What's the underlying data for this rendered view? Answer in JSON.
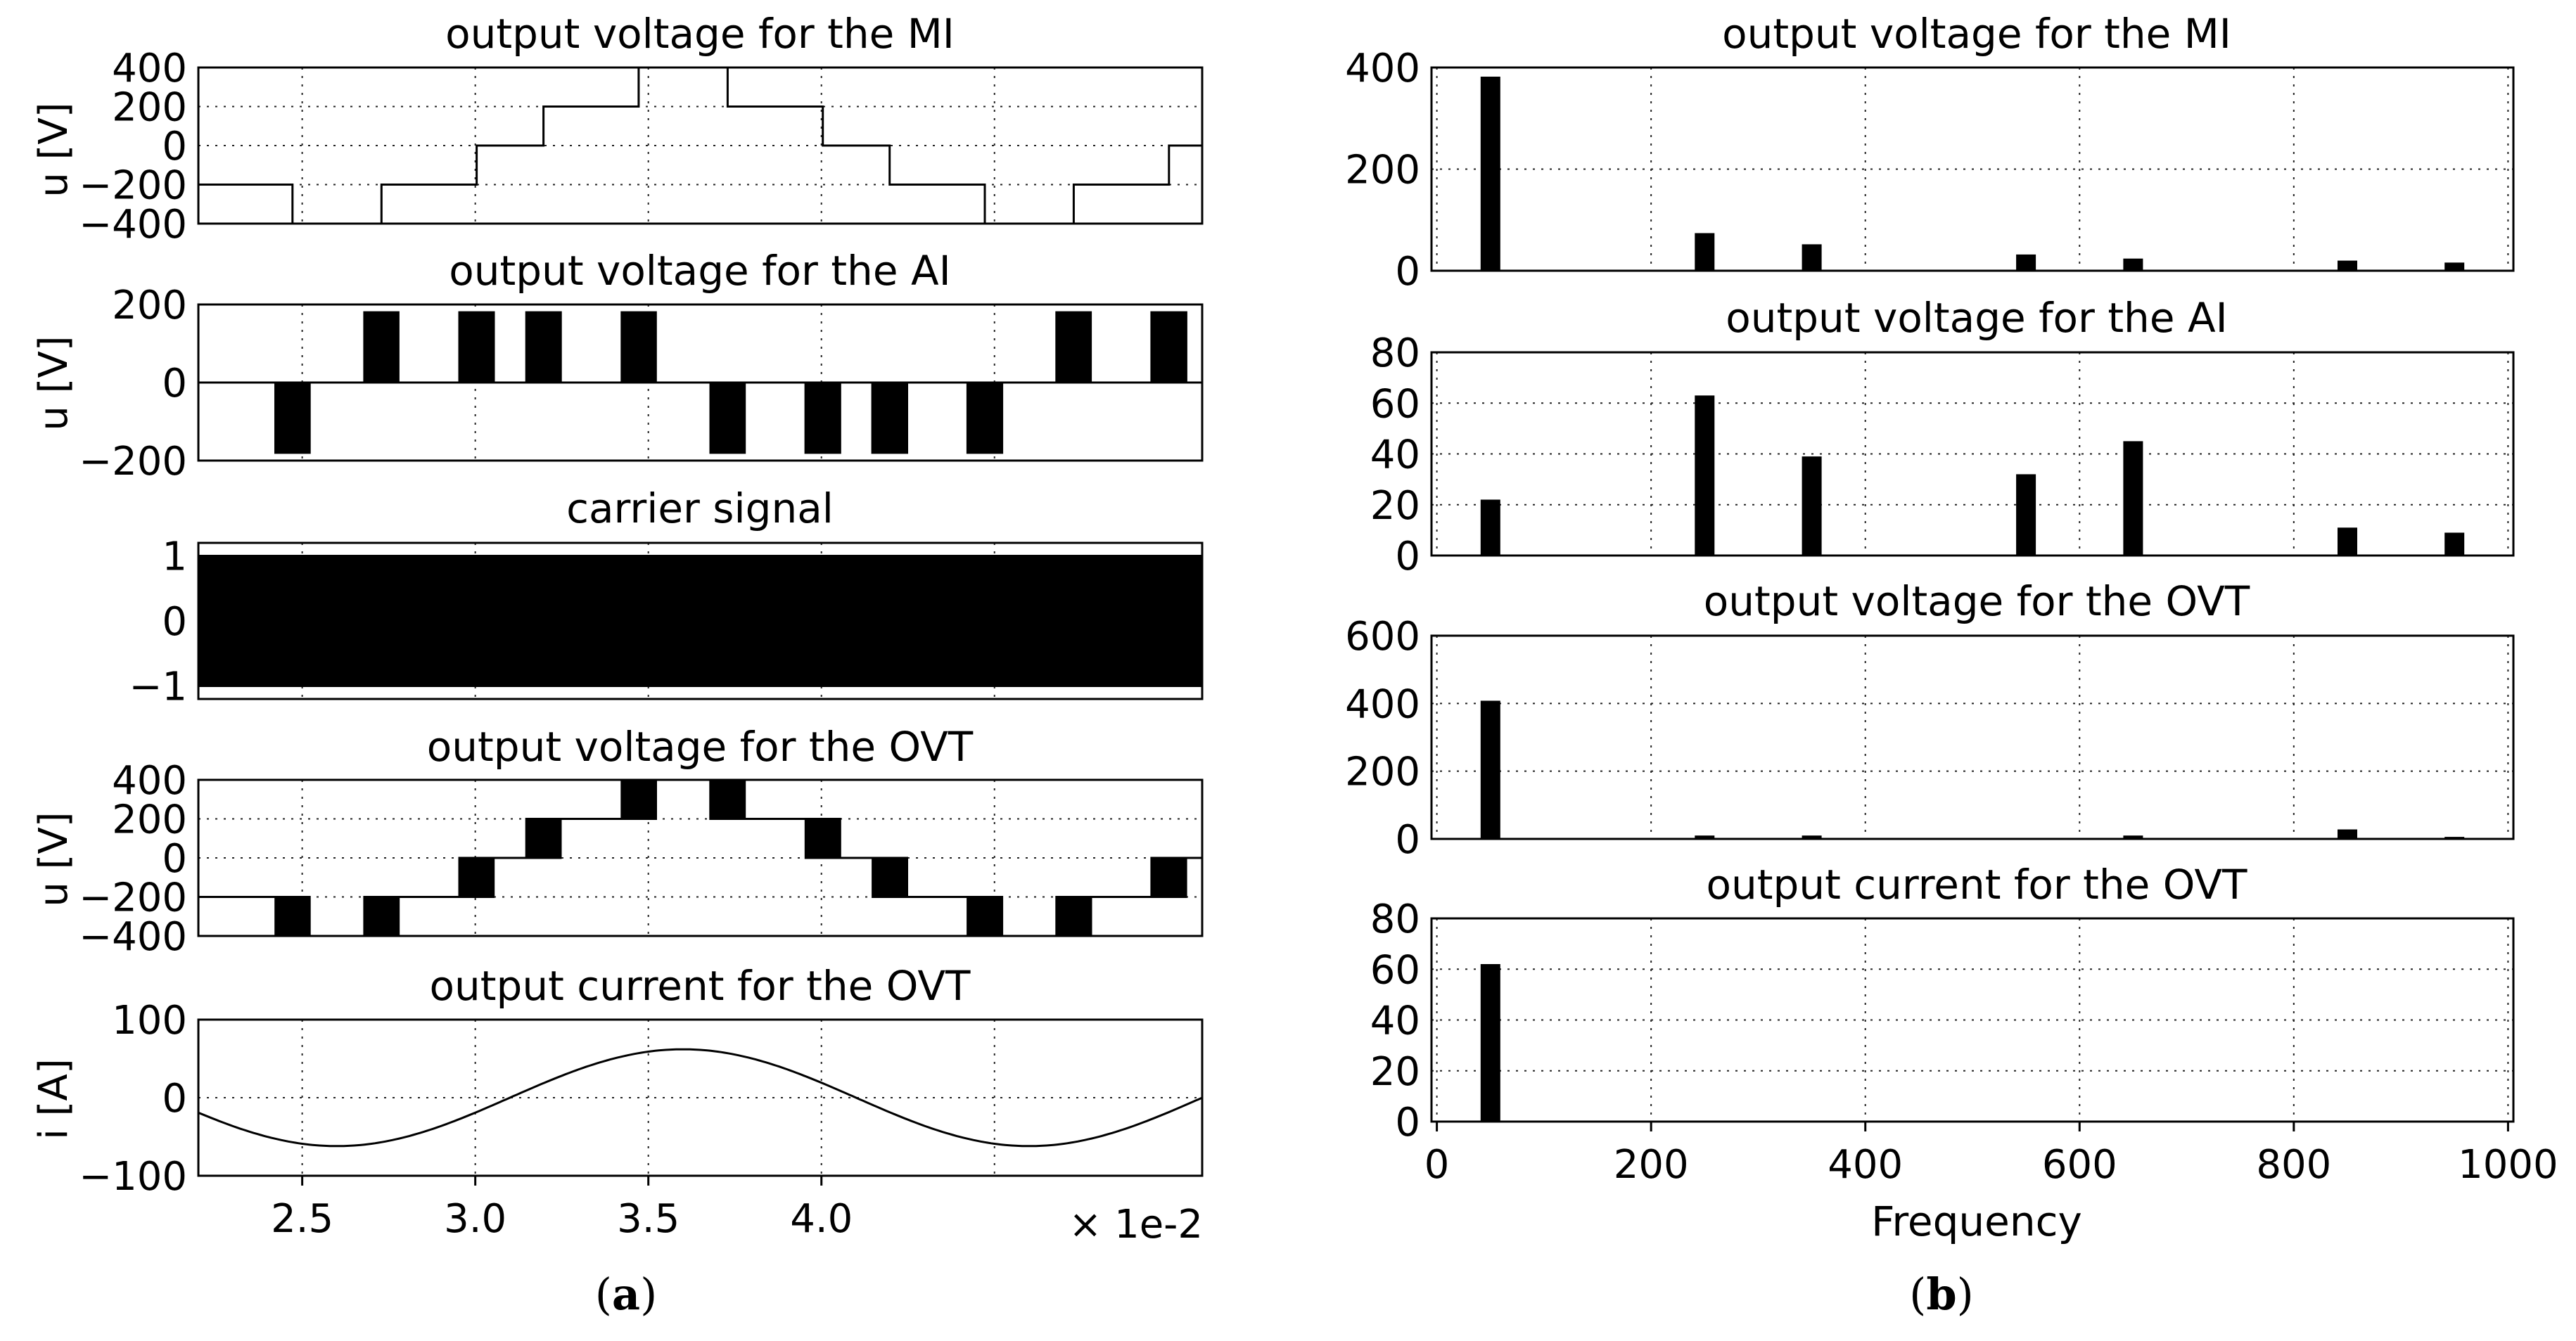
{
  "figure": {
    "left_caption": "(a)",
    "left_caption_letter": "a",
    "right_caption": "(b)",
    "right_caption_letter": "b"
  },
  "chart_data": [
    {
      "type": "line",
      "id": "a1",
      "title": "output voltage for the MI",
      "ylabel": "u [V]",
      "xlim": [
        2.2,
        5.1
      ],
      "ylim": [
        -400,
        400
      ],
      "yticks": [
        400,
        200,
        0,
        -200,
        -400
      ],
      "grid": true,
      "waveform": "mi_staircase",
      "levels": [
        -400,
        -200,
        0,
        200,
        400
      ]
    },
    {
      "type": "line",
      "id": "a2",
      "title": "output voltage for the AI",
      "ylabel": "u [V]",
      "xlim": [
        2.2,
        5.1
      ],
      "ylim": [
        -200,
        200
      ],
      "yticks": [
        200,
        0,
        -200
      ],
      "grid": true,
      "waveform": "ai_pwm",
      "levels": [
        -180,
        0,
        180
      ]
    },
    {
      "type": "line",
      "id": "a3",
      "title": "carrier signal",
      "ylabel": "",
      "xlim": [
        2.2,
        5.1
      ],
      "ylim": [
        -1.2,
        1.2
      ],
      "yticks": [
        1,
        0,
        -1
      ],
      "grid": true,
      "waveform": "carrier_square",
      "levels": [
        -1,
        1
      ]
    },
    {
      "type": "line",
      "id": "a4",
      "title": "output voltage for the OVT",
      "ylabel": "u [V]",
      "xlim": [
        2.2,
        5.1
      ],
      "ylim": [
        -400,
        400
      ],
      "yticks": [
        400,
        200,
        0,
        -200,
        -400
      ],
      "grid": true,
      "waveform": "ovt_staircase_pwm",
      "levels": [
        -400,
        -200,
        0,
        200,
        400
      ]
    },
    {
      "type": "line",
      "id": "a5",
      "title": "output current for the OVT",
      "ylabel": "i [A]",
      "xlim": [
        2.2,
        5.1
      ],
      "ylim": [
        -100,
        100
      ],
      "yticks": [
        100,
        0,
        -100
      ],
      "xticks": [
        2.5,
        3.0,
        3.5,
        4.0
      ],
      "xtick_labels": [
        "2.5",
        "3.0",
        "3.5",
        "4.0"
      ],
      "x_scale_label": "× 1e-2",
      "grid": true,
      "waveform": "sine",
      "amplitude": 62,
      "frequency_hz": 50,
      "peak_time": 3.6
    },
    {
      "type": "bar",
      "id": "b1",
      "title": "output voltage for the MI",
      "xlim": [
        -5,
        1005
      ],
      "ylim": [
        0,
        400
      ],
      "yticks": [
        400,
        200,
        0
      ],
      "grid": true,
      "x": [
        50,
        250,
        350,
        550,
        650,
        850,
        950
      ],
      "values": [
        382,
        74,
        52,
        32,
        24,
        20,
        16
      ]
    },
    {
      "type": "bar",
      "id": "b2",
      "title": "output voltage for the AI",
      "xlim": [
        -5,
        1005
      ],
      "ylim": [
        0,
        80
      ],
      "yticks": [
        80,
        60,
        40,
        20,
        0
      ],
      "grid": true,
      "x": [
        50,
        250,
        350,
        550,
        650,
        850,
        950
      ],
      "values": [
        22,
        63,
        39,
        32,
        45,
        11,
        9
      ]
    },
    {
      "type": "bar",
      "id": "b3",
      "title": "output voltage for the OVT",
      "xlim": [
        -5,
        1005
      ],
      "ylim": [
        0,
        600
      ],
      "yticks": [
        600,
        400,
        200,
        0
      ],
      "grid": true,
      "x": [
        50,
        250,
        350,
        650,
        850,
        950
      ],
      "values": [
        408,
        10,
        10,
        10,
        28,
        6
      ]
    },
    {
      "type": "bar",
      "id": "b4",
      "title": "output current for the OVT",
      "xlim": [
        -5,
        1005
      ],
      "ylim": [
        0,
        80
      ],
      "yticks": [
        80,
        60,
        40,
        20,
        0
      ],
      "xticks": [
        0,
        200,
        400,
        600,
        800,
        1000
      ],
      "xtick_labels": [
        "0",
        "200",
        "400",
        "600",
        "800",
        "1000"
      ],
      "xlabel": "Frequency",
      "grid": true,
      "x": [
        50
      ],
      "values": [
        62
      ]
    }
  ]
}
